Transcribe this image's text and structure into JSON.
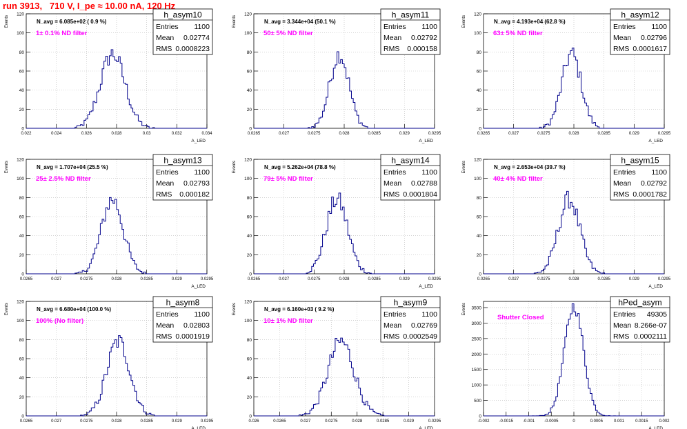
{
  "header": {
    "title": "run 3913,   710 V, I_pe ≈ 10.00 nA, 120 Hz"
  },
  "colors": {
    "hist": "#00008b",
    "annotation": "#ff00ff",
    "header": "#ff0000",
    "grid": "#bbbbbb"
  },
  "chart_data": [
    {
      "type": "bar",
      "name": "h_asym10",
      "navg": "N_avg = 6.085e+02 ( 0.9 %)",
      "filter": "1± 0.1% ND filter",
      "entries": "1100",
      "mean": "0.02774",
      "rms": "0.0008223",
      "ylabel": "Events",
      "xlabel": "A_LED",
      "xlim": [
        0.022,
        0.034
      ],
      "ylim": [
        0,
        120
      ],
      "xticks": [
        "0.022",
        "0.024",
        "0.026",
        "0.028",
        "0.03",
        "0.032",
        "0.034"
      ],
      "yticks": [
        "0",
        "20",
        "40",
        "60",
        "80",
        "100",
        "120"
      ],
      "grid": true,
      "mu": 0.02774,
      "sigma": 0.00082
    },
    {
      "type": "bar",
      "name": "h_asym11",
      "navg": "N_avg = 3.344e+04 (50.1 %)",
      "filter": "50± 5% ND filter",
      "entries": "1100",
      "mean": "0.02792",
      "rms": "0.000158",
      "ylabel": "Events",
      "xlabel": "A_LED",
      "xlim": [
        0.0265,
        0.0295
      ],
      "ylim": [
        0,
        120
      ],
      "xticks": [
        "0.0265",
        "0.027",
        "0.0275",
        "0.028",
        "0.0285",
        "0.029",
        "0.0295"
      ],
      "yticks": [
        "0",
        "20",
        "40",
        "60",
        "80",
        "100",
        "120"
      ],
      "grid": true,
      "mu": 0.02792,
      "sigma": 0.000158
    },
    {
      "type": "bar",
      "name": "h_asym12",
      "navg": "N_avg = 4.193e+04 (62.8 %)",
      "filter": "63± 5% ND filter",
      "entries": "1100",
      "mean": "0.02796",
      "rms": "0.0001617",
      "ylabel": "Events",
      "xlabel": "A_LED",
      "xlim": [
        0.0265,
        0.0295
      ],
      "ylim": [
        0,
        120
      ],
      "xticks": [
        "0.0265",
        "0.027",
        "0.0275",
        "0.028",
        "0.0285",
        "0.029",
        "0.0295"
      ],
      "yticks": [
        "0",
        "20",
        "40",
        "60",
        "80",
        "100",
        "120"
      ],
      "grid": true,
      "mu": 0.02796,
      "sigma": 0.0001617
    },
    {
      "type": "bar",
      "name": "h_asym13",
      "navg": "N_avg = 1.707e+04 (25.5 %)",
      "filter": "25± 2.5% ND filter",
      "entries": "1100",
      "mean": "0.02793",
      "rms": "0.000182",
      "ylabel": "Events",
      "xlabel": "A_LED",
      "xlim": [
        0.0265,
        0.0295
      ],
      "ylim": [
        0,
        120
      ],
      "xticks": [
        "0.0265",
        "0.027",
        "0.0275",
        "0.028",
        "0.0285",
        "0.029",
        "0.0295"
      ],
      "yticks": [
        "0",
        "20",
        "40",
        "60",
        "80",
        "100",
        "120"
      ],
      "grid": true,
      "mu": 0.02793,
      "sigma": 0.000182
    },
    {
      "type": "bar",
      "name": "h_asym14",
      "navg": "N_avg = 5.262e+04 (78.8 %)",
      "filter": "79± 5% ND filter",
      "entries": "1100",
      "mean": "0.02788",
      "rms": "0.0001804",
      "ylabel": "Events",
      "xlabel": "A_LED",
      "xlim": [
        0.0265,
        0.0295
      ],
      "ylim": [
        0,
        120
      ],
      "xticks": [
        "0.0265",
        "0.027",
        "0.0275",
        "0.028",
        "0.0285",
        "0.029",
        "0.0295"
      ],
      "yticks": [
        "0",
        "20",
        "40",
        "60",
        "80",
        "100",
        "120"
      ],
      "grid": true,
      "mu": 0.02788,
      "sigma": 0.0001804
    },
    {
      "type": "bar",
      "name": "h_asym15",
      "navg": "N_avg = 2.653e+04 (39.7 %)",
      "filter": "40± 4% ND filter",
      "entries": "1100",
      "mean": "0.02792",
      "rms": "0.0001782",
      "ylabel": "Events",
      "xlabel": "A_LED",
      "xlim": [
        0.0265,
        0.0295
      ],
      "ylim": [
        0,
        120
      ],
      "xticks": [
        "0.0265",
        "0.027",
        "0.0275",
        "0.028",
        "0.0285",
        "0.029",
        "0.0295"
      ],
      "yticks": [
        "0",
        "20",
        "40",
        "60",
        "80",
        "100",
        "120"
      ],
      "grid": true,
      "mu": 0.02792,
      "sigma": 0.0001782
    },
    {
      "type": "bar",
      "name": "h_asym8",
      "navg": "N_avg = 6.680e+04 (100.0 %)",
      "filter": "100% (No filter)",
      "entries": "1100",
      "mean": "0.02803",
      "rms": "0.0001919",
      "ylabel": "Events",
      "xlabel": "A_LED",
      "xlim": [
        0.0265,
        0.0295
      ],
      "ylim": [
        0,
        120
      ],
      "xticks": [
        "0.0265",
        "0.027",
        "0.0275",
        "0.028",
        "0.0285",
        "0.029",
        "0.0295"
      ],
      "yticks": [
        "0",
        "20",
        "40",
        "60",
        "80",
        "100",
        "120"
      ],
      "grid": true,
      "mu": 0.02803,
      "sigma": 0.0001919
    },
    {
      "type": "bar",
      "name": "h_asym9",
      "navg": "N_avg = 6.160e+03 ( 9.2 %)",
      "filter": "10± 1% ND filter",
      "entries": "1100",
      "mean": "0.02769",
      "rms": "0.0002549",
      "ylabel": "Events",
      "xlabel": "A_LED",
      "xlim": [
        0.026,
        0.0295
      ],
      "ylim": [
        0,
        120
      ],
      "xticks": [
        "0.026",
        "0.0265",
        "0.027",
        "0.0275",
        "0.028",
        "0.0285",
        "0.029",
        "0.0295"
      ],
      "yticks": [
        "0",
        "20",
        "40",
        "60",
        "80",
        "100",
        "120"
      ],
      "grid": true,
      "mu": 0.02769,
      "sigma": 0.0002549
    },
    {
      "type": "bar",
      "name": "hPed_asym",
      "navg": "",
      "filter": "Shutter Closed",
      "entries": "49305",
      "mean": "8.266e-07",
      "rms": "0.0002111",
      "ylabel": "Events",
      "xlabel": "A_LED",
      "xlim": [
        -0.002,
        0.002
      ],
      "ylim": [
        0,
        3700
      ],
      "xticks": [
        "-0.002",
        "-0.0015",
        "-0.001",
        "-0.0005",
        "0",
        "0.0005",
        "0.001",
        "0.0015",
        "0.002"
      ],
      "yticks": [
        "0",
        "500",
        "1000",
        "1500",
        "2000",
        "2500",
        "3000",
        "3500"
      ],
      "grid": true,
      "mu": 8e-07,
      "sigma": 0.0002111
    }
  ]
}
